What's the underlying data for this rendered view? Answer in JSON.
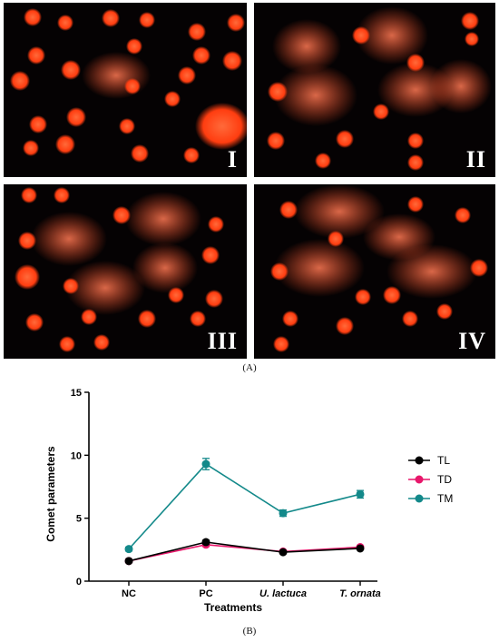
{
  "panels": [
    {
      "label": "I"
    },
    {
      "label": "II"
    },
    {
      "label": "III"
    },
    {
      "label": "IV"
    }
  ],
  "caption_a": "(A)",
  "caption_b": "(B)",
  "colors": {
    "TL": "#000000",
    "TD": "#e8176b",
    "TM": "#13898a",
    "cell": "#ff4a14"
  },
  "chart_data": {
    "type": "line",
    "categories": [
      "NC",
      "PC",
      "U. lactuca",
      "T. ornata"
    ],
    "xlabel": "Treatments",
    "ylabel": "Comet parameters",
    "ylim": [
      0,
      15
    ],
    "yticks": [
      0,
      5,
      10,
      15
    ],
    "legend_position": "right",
    "series": [
      {
        "name": "TL",
        "values": [
          1.6,
          3.1,
          2.3,
          2.6
        ],
        "errors": [
          0.1,
          0.15,
          0.1,
          0.1
        ]
      },
      {
        "name": "TD",
        "values": [
          1.6,
          2.9,
          2.35,
          2.7
        ],
        "errors": [
          0.1,
          0.15,
          0.1,
          0.1
        ]
      },
      {
        "name": "TM",
        "values": [
          2.55,
          9.3,
          5.4,
          6.9
        ],
        "errors": [
          0.15,
          0.45,
          0.25,
          0.3
        ]
      }
    ]
  }
}
